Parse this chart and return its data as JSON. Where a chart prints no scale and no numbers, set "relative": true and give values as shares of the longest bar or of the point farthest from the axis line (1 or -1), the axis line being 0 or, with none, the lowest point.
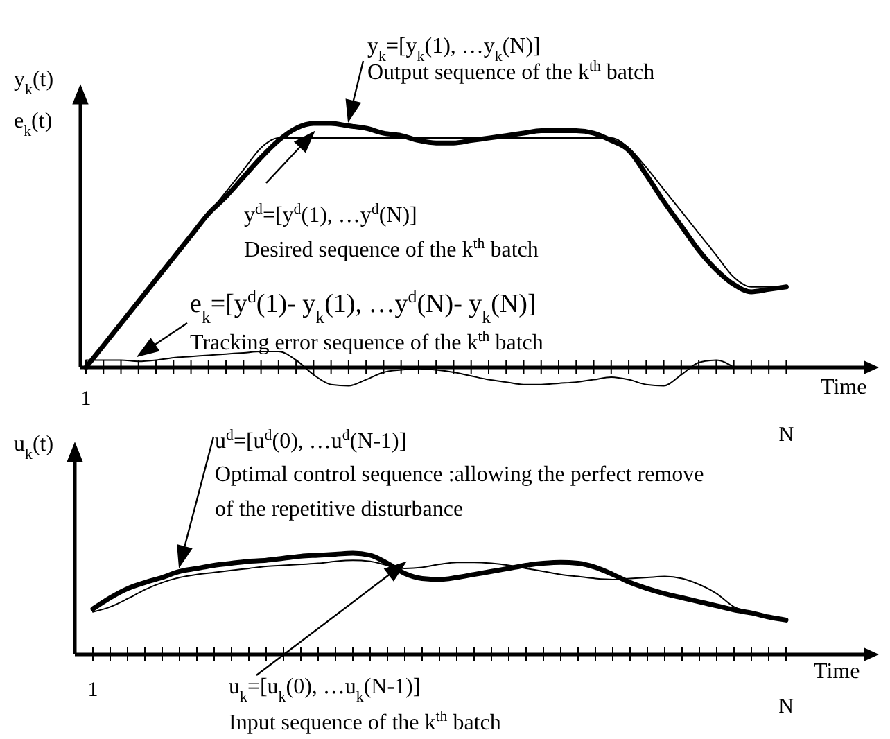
{
  "chart_data": [
    {
      "type": "line",
      "relative": true,
      "ylabel": "y$_{k}$(t)\ne$_{k}$(t)",
      "xlabel": "Time",
      "categories": [
        "1",
        null,
        null,
        null,
        null,
        null,
        null,
        null,
        null,
        null,
        null,
        null,
        null,
        null,
        null,
        null,
        null,
        null,
        null,
        null,
        null,
        null,
        null,
        null,
        null,
        null,
        null,
        null,
        null,
        null,
        null,
        null,
        null,
        null,
        null,
        null,
        null,
        null,
        null,
        null,
        "N"
      ],
      "series": [
        {
          "name": "y$_{k}$=[y$_{k}$(1), …y$_{k}$(N)]",
          "color": "#000000",
          "values": [
            0,
            0.09,
            0.18,
            0.27,
            0.36,
            0.45,
            0.54,
            0.63,
            0.7,
            0.78,
            0.86,
            0.93,
            0.98,
            1,
            1,
            0.99,
            0.98,
            0.96,
            0.95,
            0.93,
            0.92,
            0.92,
            0.93,
            0.94,
            0.95,
            0.96,
            0.97,
            0.97,
            0.97,
            0.96,
            0.93,
            0.89,
            0.79,
            0.68,
            0.58,
            0.48,
            0.4,
            0.34,
            0.31,
            0.32,
            0.33
          ]
        },
        {
          "name": "y$^{d}$=[y$^{d}$(1), …y$^{d}$(N)]",
          "color": "#000000",
          "values": [
            0,
            0.09,
            0.18,
            0.27,
            0.36,
            0.45,
            0.54,
            0.63,
            0.72,
            0.81,
            0.9,
            0.94,
            0.94,
            0.94,
            0.94,
            0.94,
            0.94,
            0.94,
            0.94,
            0.94,
            0.94,
            0.94,
            0.94,
            0.94,
            0.94,
            0.94,
            0.94,
            0.94,
            0.94,
            0.94,
            0.94,
            0.9,
            0.82,
            0.73,
            0.64,
            0.55,
            0.46,
            0.37,
            0.33,
            0.33,
            0.33
          ]
        },
        {
          "name": "e$_{k}$=[y$^{d}$(1)- y$_{k}$(1), …y$^{d}$(N)- y$_{k}$(N)]",
          "color": "#000000",
          "values": [
            0.03,
            0.03,
            0.03,
            0.025,
            0.03,
            0.04,
            0.045,
            0.05,
            0.055,
            0.06,
            0.065,
            0.065,
            0.03,
            -0.03,
            -0.07,
            -0.075,
            -0.05,
            -0.02,
            -0.01,
            -0.005,
            -0.01,
            -0.02,
            -0.035,
            -0.05,
            -0.06,
            -0.07,
            -0.07,
            -0.065,
            -0.06,
            -0.05,
            -0.04,
            -0.05,
            -0.07,
            -0.075,
            -0.03,
            0.02,
            0.03,
            0,
            null,
            null,
            null
          ]
        }
      ],
      "annotations": [
        "Output sequence of the k$^{th}$ batch",
        "Desired sequence of the k$^{th}$ batch",
        "Tracking error sequence of the k$^{th}$ batch"
      ]
    },
    {
      "type": "line",
      "relative": true,
      "ylabel": "u$_{k}$(t)",
      "xlabel": "Time",
      "categories": [
        "1",
        null,
        null,
        null,
        null,
        null,
        null,
        null,
        null,
        null,
        null,
        null,
        null,
        null,
        null,
        null,
        null,
        null,
        null,
        null,
        null,
        null,
        null,
        null,
        null,
        null,
        null,
        null,
        null,
        null,
        null,
        null,
        null,
        null,
        null,
        null,
        null,
        null,
        null,
        null,
        "N"
      ],
      "series": [
        {
          "name": "u$^{d}$=[u$^{d}$(0), …u$^{d}$(N-1)]",
          "color": "#000000",
          "values": [
            0.45,
            0.56,
            0.65,
            0.71,
            0.76,
            0.82,
            0.85,
            0.88,
            0.9,
            0.92,
            0.93,
            0.95,
            0.97,
            0.98,
            0.99,
            1,
            0.98,
            0.9,
            0.8,
            0.75,
            0.74,
            0.76,
            0.79,
            0.82,
            0.85,
            0.88,
            0.9,
            0.91,
            0.9,
            0.86,
            0.79,
            0.71,
            0.65,
            0.6,
            0.56,
            0.52,
            0.48,
            0.44,
            0.41,
            0.37,
            0.34
          ]
        },
        {
          "name": "u$_{k}$=[u$_{k}$(0), …u$_{k}$(N-1)]",
          "color": "#000000",
          "values": [
            0.42,
            0.47,
            0.55,
            0.64,
            0.71,
            0.76,
            0.79,
            0.81,
            0.83,
            0.85,
            0.87,
            0.88,
            0.89,
            0.9,
            0.92,
            0.93,
            0.92,
            0.88,
            0.85,
            0.86,
            0.89,
            0.91,
            0.91,
            0.9,
            0.88,
            0.85,
            0.82,
            0.79,
            0.77,
            0.75,
            0.74,
            0.75,
            0.76,
            0.77,
            0.75,
            0.69,
            0.6,
            0.47,
            0.42,
            0.38,
            0.34
          ]
        }
      ],
      "annotations": [
        "Optimal control sequence :allowing the perfect remove\nof the repetitive disturbance",
        "Input sequence of the k$^{th}$ batch"
      ]
    }
  ]
}
